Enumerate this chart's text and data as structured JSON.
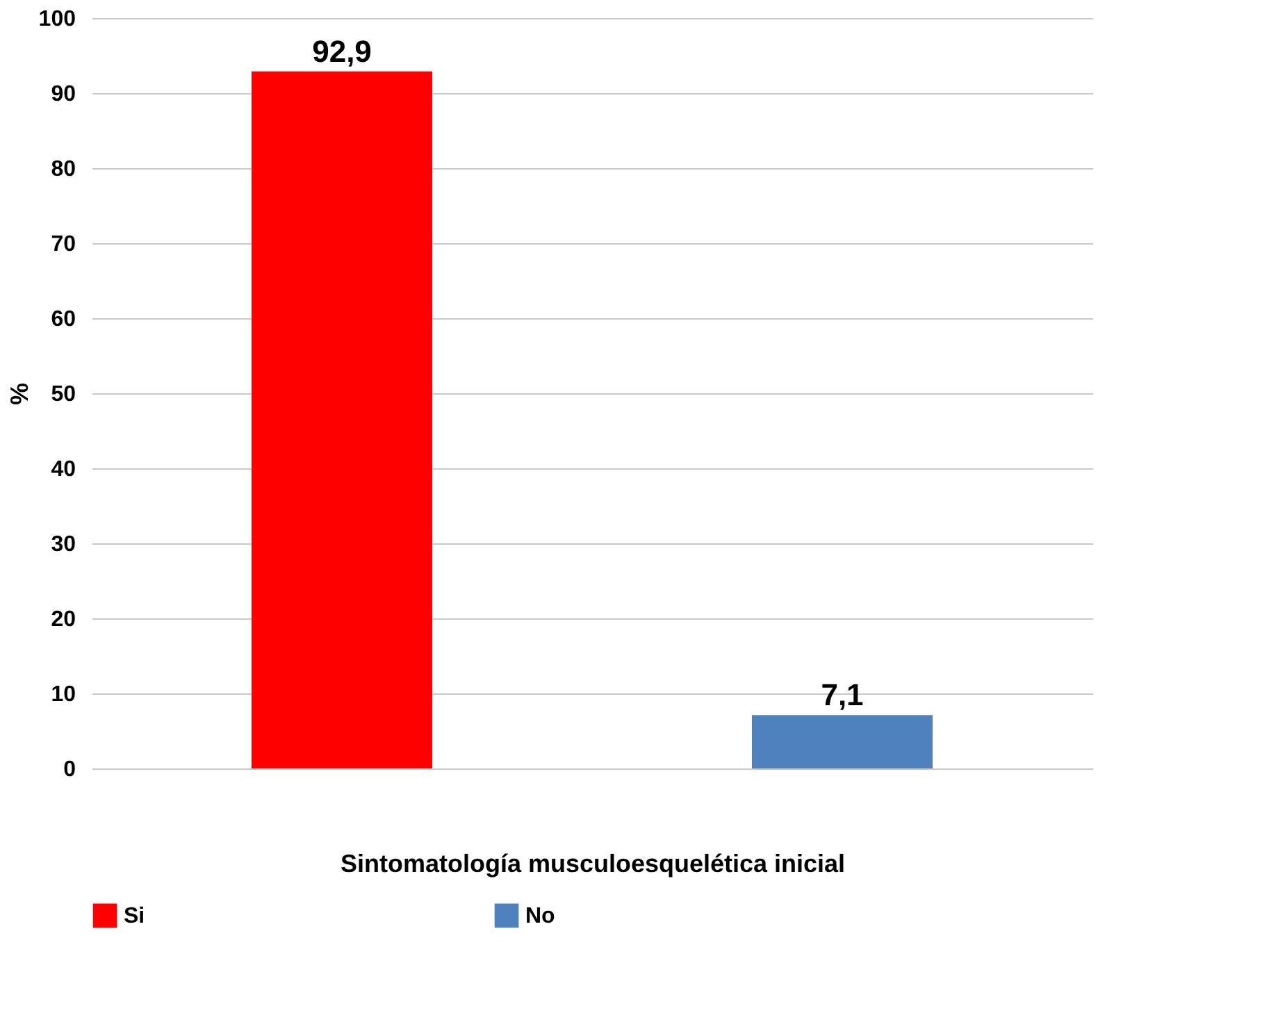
{
  "chart_data": {
    "type": "bar",
    "xlabel": "Sintomatología musculoesquelética inicial",
    "ylabel": "%",
    "categories": [
      null,
      null
    ],
    "series": [
      {
        "name": "Si",
        "color": "#ff0000",
        "values": [
          92.9,
          null
        ],
        "value_labels": [
          "92,9",
          null
        ]
      },
      {
        "name": "No",
        "color": "#4f81bd",
        "values": [
          null,
          7.1
        ],
        "value_labels": [
          null,
          "7,1"
        ]
      }
    ],
    "ylim": [
      0,
      100
    ],
    "yticks": [
      0,
      10,
      20,
      30,
      40,
      50,
      60,
      70,
      80,
      90,
      100
    ],
    "grid": "y",
    "legend": "bottom"
  }
}
